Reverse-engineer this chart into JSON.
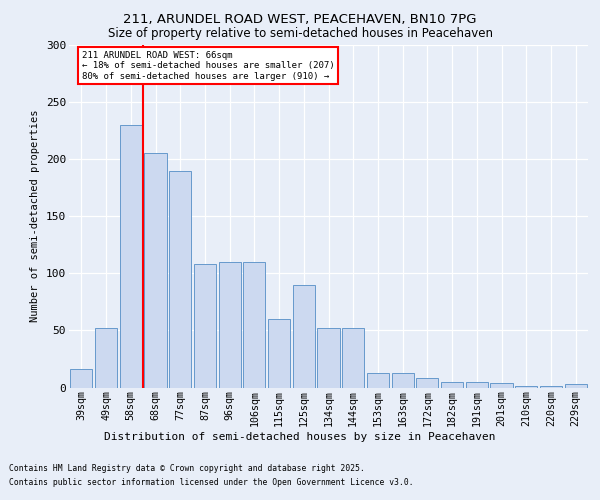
{
  "title1": "211, ARUNDEL ROAD WEST, PEACEHAVEN, BN10 7PG",
  "title2": "Size of property relative to semi-detached houses in Peacehaven",
  "xlabel": "Distribution of semi-detached houses by size in Peacehaven",
  "ylabel": "Number of semi-detached properties",
  "categories": [
    "39sqm",
    "49sqm",
    "58sqm",
    "68sqm",
    "77sqm",
    "87sqm",
    "96sqm",
    "106sqm",
    "115sqm",
    "125sqm",
    "134sqm",
    "144sqm",
    "153sqm",
    "163sqm",
    "172sqm",
    "182sqm",
    "191sqm",
    "201sqm",
    "210sqm",
    "220sqm",
    "229sqm"
  ],
  "values": [
    16,
    52,
    230,
    205,
    190,
    108,
    110,
    110,
    60,
    90,
    52,
    52,
    13,
    13,
    8,
    5,
    5,
    4,
    1,
    1,
    3
  ],
  "bar_color": "#ccd9f0",
  "bar_edge_color": "#6699cc",
  "vline_color": "red",
  "vline_x": 2.5,
  "annotation_title": "211 ARUNDEL ROAD WEST: 66sqm",
  "annotation_line1": "← 18% of semi-detached houses are smaller (207)",
  "annotation_line2": "80% of semi-detached houses are larger (910) →",
  "annotation_box_edgecolor": "red",
  "ylim": [
    0,
    300
  ],
  "yticks": [
    0,
    50,
    100,
    150,
    200,
    250,
    300
  ],
  "footnote1": "Contains HM Land Registry data © Crown copyright and database right 2025.",
  "footnote2": "Contains public sector information licensed under the Open Government Licence v3.0.",
  "bg_color": "#e8eef8",
  "plot_bg_color": "#e8eef8"
}
